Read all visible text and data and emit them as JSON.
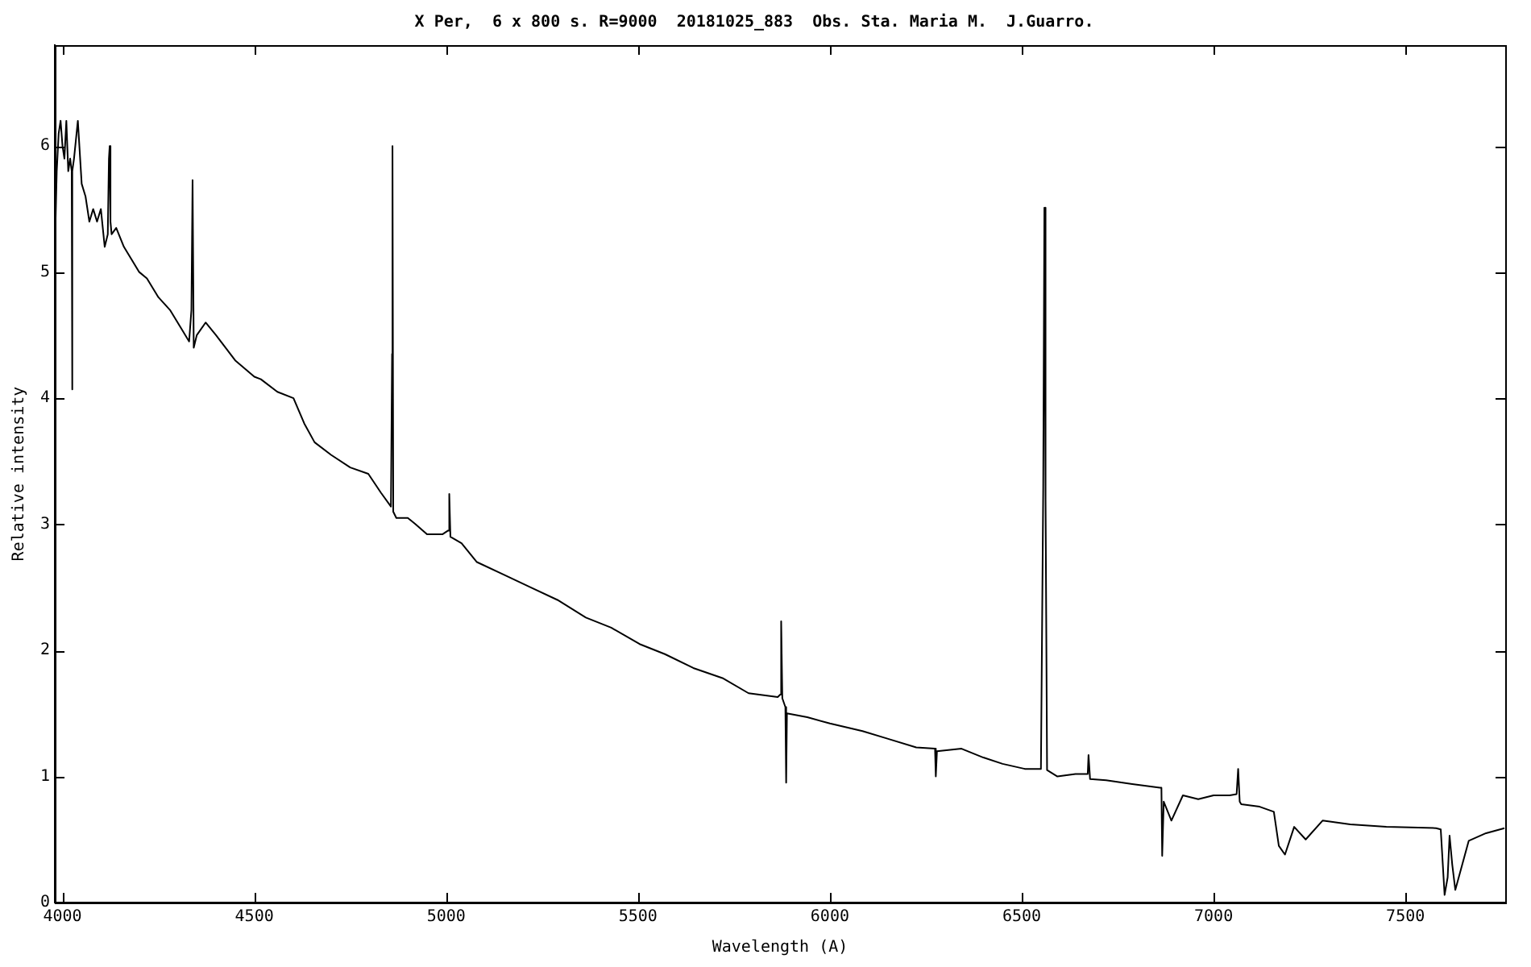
{
  "chart_data": {
    "type": "line",
    "title": "X Per,  6 x 800 s. R=9000  20181025_883  Obs. Sta. Maria M.  J.Guarro.",
    "xlabel": "Wavelength (A)",
    "ylabel": "Relative intensity",
    "xlim": [
      3980,
      7760
    ],
    "ylim": [
      0,
      6.8
    ],
    "xticks": [
      4000,
      4500,
      5000,
      5500,
      6000,
      6500,
      7000,
      7500
    ],
    "yticks": [
      0,
      1,
      2,
      3,
      4,
      5,
      6
    ],
    "grid": false,
    "legend": false,
    "marker": "none",
    "line_style": "solid",
    "series": [
      {
        "color": "#000000",
        "x": [
          3981,
          3985,
          3990,
          3995,
          4000,
          4005,
          4010,
          4015,
          4020,
          4024,
          4025,
          4026,
          4030,
          4040,
          4050,
          4060,
          4070,
          4080,
          4090,
          4100,
          4110,
          4118,
          4121,
          4123,
          4125,
          4128,
          4140,
          4160,
          4180,
          4200,
          4220,
          4250,
          4280,
          4310,
          4330,
          4336,
          4339,
          4342,
          4350,
          4373,
          4400,
          4450,
          4500,
          4517,
          4560,
          4602,
          4630,
          4657,
          4700,
          4750,
          4797,
          4830,
          4856,
          4859,
          4860,
          4862,
          4870,
          4900,
          4920,
          4950,
          4990,
          5005,
          5008,
          5011,
          5040,
          5080,
          5150,
          5220,
          5290,
          5364,
          5430,
          5504,
          5570,
          5644,
          5720,
          5788,
          5864,
          5871,
          5873,
          5876,
          5884,
          5886,
          5888,
          5941,
          6000,
          6085,
          6150,
          6225,
          6274,
          6276,
          6279,
          6343,
          6400,
          6450,
          6508,
          6550,
          6556,
          6559,
          6562,
          6566,
          6593,
          6640,
          6672,
          6674,
          6678,
          6720,
          6788,
          6860,
          6864,
          6866,
          6870,
          6890,
          6920,
          6960,
          7000,
          7042,
          7060,
          7064,
          7068,
          7072,
          7120,
          7157,
          7170,
          7186,
          7210,
          7240,
          7284,
          7356,
          7450,
          7580,
          7592,
          7602,
          7610,
          7615,
          7622,
          7630,
          7665,
          7710,
          7758
        ],
        "values": [
          5.3,
          5.8,
          6.1,
          6.2,
          6.0,
          5.9,
          6.2,
          5.8,
          5.9,
          5.8,
          4.07,
          5.8,
          5.9,
          6.2,
          5.7,
          5.6,
          5.4,
          5.5,
          5.4,
          5.5,
          5.2,
          5.3,
          5.9,
          6.0,
          5.4,
          5.3,
          5.35,
          5.2,
          5.1,
          5.0,
          4.95,
          4.8,
          4.7,
          4.55,
          4.45,
          4.7,
          5.73,
          4.4,
          4.5,
          4.6,
          4.5,
          4.3,
          4.17,
          4.15,
          4.05,
          4.0,
          3.8,
          3.65,
          3.55,
          3.45,
          3.4,
          3.25,
          3.14,
          4.35,
          6.0,
          3.1,
          3.05,
          3.05,
          3.0,
          2.92,
          2.92,
          2.95,
          3.24,
          2.9,
          2.85,
          2.7,
          2.6,
          2.5,
          2.4,
          2.26,
          2.18,
          2.05,
          1.97,
          1.86,
          1.78,
          1.66,
          1.63,
          1.65,
          2.23,
          1.62,
          1.55,
          0.95,
          1.5,
          1.47,
          1.42,
          1.36,
          1.3,
          1.23,
          1.22,
          1.0,
          1.2,
          1.22,
          1.15,
          1.1,
          1.06,
          1.06,
          3.3,
          5.51,
          3.2,
          1.05,
          1.0,
          1.02,
          1.02,
          1.17,
          0.98,
          0.97,
          0.94,
          0.91,
          0.91,
          0.37,
          0.8,
          0.65,
          0.85,
          0.82,
          0.85,
          0.85,
          0.86,
          1.06,
          0.8,
          0.78,
          0.76,
          0.72,
          0.45,
          0.38,
          0.6,
          0.5,
          0.65,
          0.62,
          0.6,
          0.59,
          0.58,
          0.06,
          0.2,
          0.53,
          0.3,
          0.1,
          0.49,
          0.55,
          0.59
        ]
      }
    ]
  }
}
